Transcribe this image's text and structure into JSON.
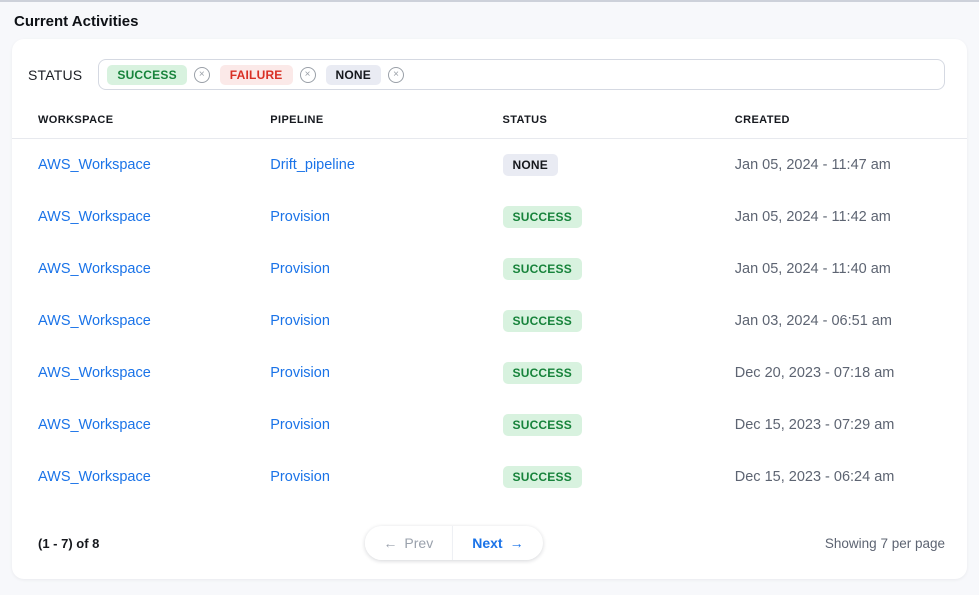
{
  "page": {
    "title": "Current Activities"
  },
  "filter": {
    "label": "STATUS",
    "tags": [
      {
        "label": "SUCCESS",
        "type": "success"
      },
      {
        "label": "FAILURE",
        "type": "failure"
      },
      {
        "label": "NONE",
        "type": "none"
      }
    ]
  },
  "icons": {
    "remove": "×",
    "prev_arrow": "←",
    "next_arrow": "→"
  },
  "table": {
    "columns": [
      "WORKSPACE",
      "PIPELINE",
      "STATUS",
      "CREATED"
    ],
    "rows": [
      {
        "workspace": "AWS_Workspace",
        "pipeline": "Drift_pipeline",
        "status": "NONE",
        "status_type": "none",
        "created": "Jan 05, 2024 - 11:47 am"
      },
      {
        "workspace": "AWS_Workspace",
        "pipeline": "Provision",
        "status": "SUCCESS",
        "status_type": "success",
        "created": "Jan 05, 2024 - 11:42 am"
      },
      {
        "workspace": "AWS_Workspace",
        "pipeline": "Provision",
        "status": "SUCCESS",
        "status_type": "success",
        "created": "Jan 05, 2024 - 11:40 am"
      },
      {
        "workspace": "AWS_Workspace",
        "pipeline": "Provision",
        "status": "SUCCESS",
        "status_type": "success",
        "created": "Jan 03, 2024 - 06:51 am"
      },
      {
        "workspace": "AWS_Workspace",
        "pipeline": "Provision",
        "status": "SUCCESS",
        "status_type": "success",
        "created": "Dec 20, 2023 - 07:18 am"
      },
      {
        "workspace": "AWS_Workspace",
        "pipeline": "Provision",
        "status": "SUCCESS",
        "status_type": "success",
        "created": "Dec 15, 2023 - 07:29 am"
      },
      {
        "workspace": "AWS_Workspace",
        "pipeline": "Provision",
        "status": "SUCCESS",
        "status_type": "success",
        "created": "Dec 15, 2023 - 06:24 am"
      }
    ]
  },
  "pagination": {
    "range_text": "(1 - 7) of 8",
    "prev_label": "Prev",
    "next_label": "Next",
    "per_page_text": "Showing 7 per page"
  },
  "colors": {
    "accent_link": "#1a73e8",
    "success_bg": "#d8f2df",
    "success_text": "#17833b",
    "failure_bg": "#fbe9e8",
    "failure_text": "#d93025",
    "none_bg": "#e9ebf3",
    "none_text": "#16181d",
    "page_bg": "#f7f8fb"
  }
}
